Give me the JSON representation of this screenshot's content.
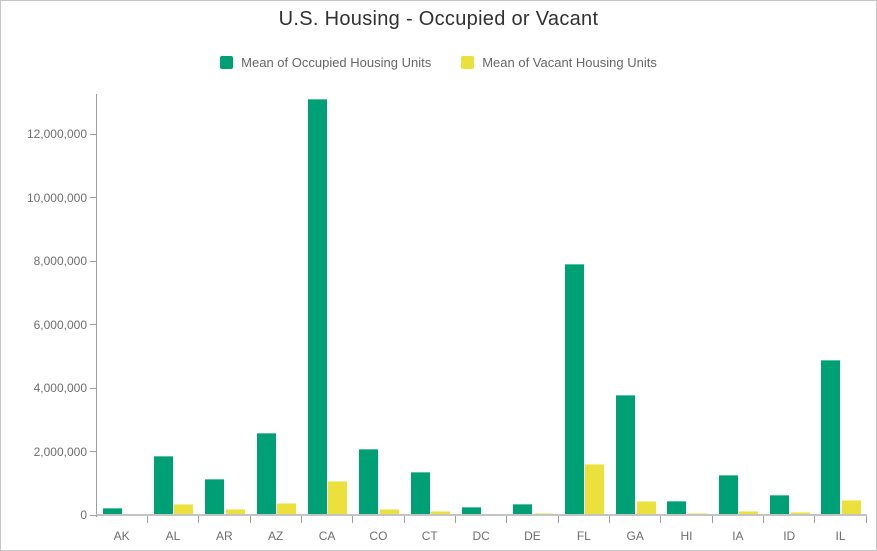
{
  "page": {
    "title": "U.S. Housing - Occupied or Vacant"
  },
  "legend": {
    "items": [
      {
        "label": "Mean of Occupied Housing Units",
        "color": "#00a076"
      },
      {
        "label": "Mean of Vacant Housing Units",
        "color": "#ebe03c"
      }
    ]
  },
  "colors": {
    "occupied_bar": "#00a076",
    "vacant_bar": "#ebe03c",
    "axis": "#9e9e9e",
    "baseline": "#c4c4c4",
    "tick_text": "#6e6e6e",
    "title_text": "#313131"
  },
  "chart_data": {
    "type": "bar",
    "title": "U.S. Housing - Occupied or Vacant",
    "xlabel": "",
    "ylabel": "",
    "categories": [
      "AK",
      "AL",
      "AR",
      "AZ",
      "CA",
      "CO",
      "CT",
      "DC",
      "DE",
      "FL",
      "GA",
      "HI",
      "IA",
      "ID",
      "IL"
    ],
    "series": [
      {
        "name": "Mean of Occupied Housing Units",
        "color": "#00a076",
        "values": [
          210000,
          1850000,
          1120000,
          2590000,
          13100000,
          2090000,
          1350000,
          260000,
          350000,
          7900000,
          3780000,
          440000,
          1260000,
          630000,
          4870000
        ]
      },
      {
        "name": "Mean of Vacant Housing Units",
        "color": "#ebe03c",
        "values": [
          40000,
          350000,
          180000,
          370000,
          1070000,
          200000,
          120000,
          30000,
          50000,
          1600000,
          450000,
          60000,
          120000,
          80000,
          470000
        ]
      }
    ],
    "ylim": [
      0,
      13200000
    ],
    "yticks": [
      0,
      2000000,
      4000000,
      6000000,
      8000000,
      10000000,
      12000000
    ],
    "ytick_labels": [
      "0",
      "2,000,000",
      "4,000,000",
      "6,000,000",
      "8,000,000",
      "10,000,000",
      "12,000,000"
    ],
    "grid": false,
    "legend_position": "top"
  }
}
